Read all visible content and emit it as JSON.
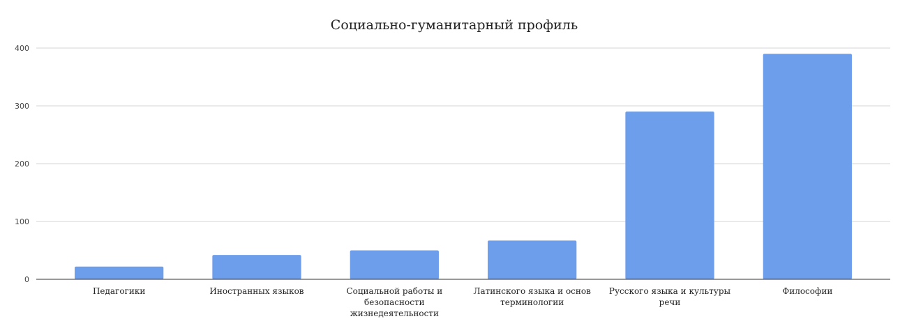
{
  "chart_data": {
    "type": "bar",
    "title": "Социально-гуманитарный профиль",
    "xlabel": "",
    "ylabel": "",
    "categories": [
      "Педагогики",
      "Иностранных языков",
      "Социальной работы и безопасности жизнедеятельности",
      "Латинского языка и основ терминологии",
      "Русского языка и культуры речи",
      "Философии"
    ],
    "category_lines": [
      [
        "Педагогики"
      ],
      [
        "Иностранных языков"
      ],
      [
        "Социальной работы и",
        "безопасности",
        "жизнедеятельности"
      ],
      [
        "Латинского языка и основ",
        "терминологии"
      ],
      [
        "Русского языка и культуры",
        "речи"
      ],
      [
        "Философии"
      ]
    ],
    "values": [
      22,
      42,
      50,
      67,
      290,
      390
    ],
    "yticks": [
      0,
      100,
      200,
      300,
      400
    ],
    "ylim": [
      0,
      400
    ],
    "grid": true,
    "legend": "none",
    "bar_color": "#6d9eeb"
  }
}
